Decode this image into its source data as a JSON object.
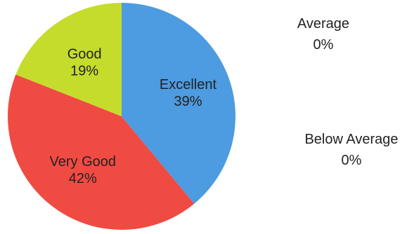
{
  "chart_data": {
    "type": "pie",
    "start_angle_deg": 0,
    "direction": "clockwise",
    "slices": [
      {
        "label": "Excellent",
        "value": 39,
        "value_label": "39%",
        "color": "#4d9be0"
      },
      {
        "label": "Very Good",
        "value": 42,
        "value_label": "42%",
        "color": "#ef4b43"
      },
      {
        "label": "Good",
        "value": 19,
        "value_label": "19%",
        "color": "#c5dc2c"
      }
    ],
    "outside_labels": [
      {
        "label": "Average",
        "value": 0,
        "value_label": "0%"
      },
      {
        "label": "Below Average",
        "value": 0,
        "value_label": "0%"
      }
    ],
    "text_color": "#222222"
  }
}
